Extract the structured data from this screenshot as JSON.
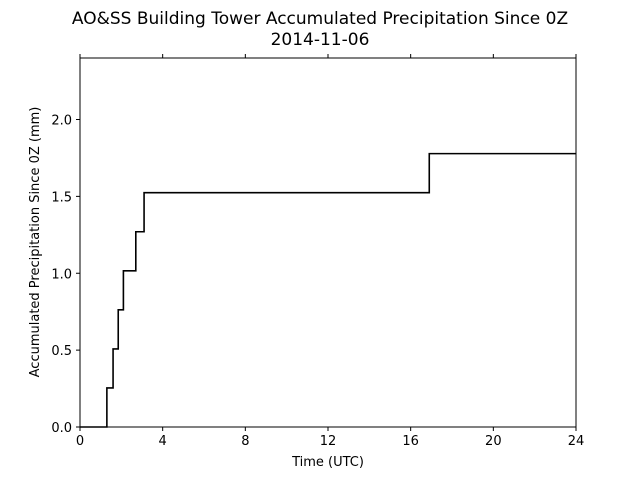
{
  "chart_data": {
    "type": "line",
    "title": "AO&SS Building Tower Accumulated Precipitation Since 0Z",
    "subtitle": "2014-11-06",
    "xlabel": "Time (UTC)",
    "ylabel": "Accumulated Precipitation Since 0Z (mm)",
    "xlim": [
      0,
      24
    ],
    "ylim": [
      0,
      2.4
    ],
    "xticks": [
      0,
      4,
      8,
      12,
      16,
      20,
      24
    ],
    "yticks": [
      0.0,
      0.5,
      1.0,
      1.5,
      2.0
    ],
    "xtick_labels": [
      "0",
      "4",
      "8",
      "12",
      "16",
      "20",
      "24"
    ],
    "ytick_labels": [
      "0.0",
      "0.5",
      "1.0",
      "1.5",
      "2.0"
    ],
    "grid": false,
    "line_color": "#000000",
    "series": [
      {
        "x": [
          0,
          1.3,
          1.3,
          1.6,
          1.6,
          1.85,
          1.85,
          2.1,
          2.1,
          2.7,
          2.7,
          3.1,
          3.1,
          16.9,
          16.9,
          24
        ],
        "y": [
          0,
          0,
          0.254,
          0.254,
          0.508,
          0.508,
          0.762,
          0.762,
          1.016,
          1.016,
          1.27,
          1.27,
          1.524,
          1.524,
          1.778,
          1.778
        ]
      }
    ]
  }
}
